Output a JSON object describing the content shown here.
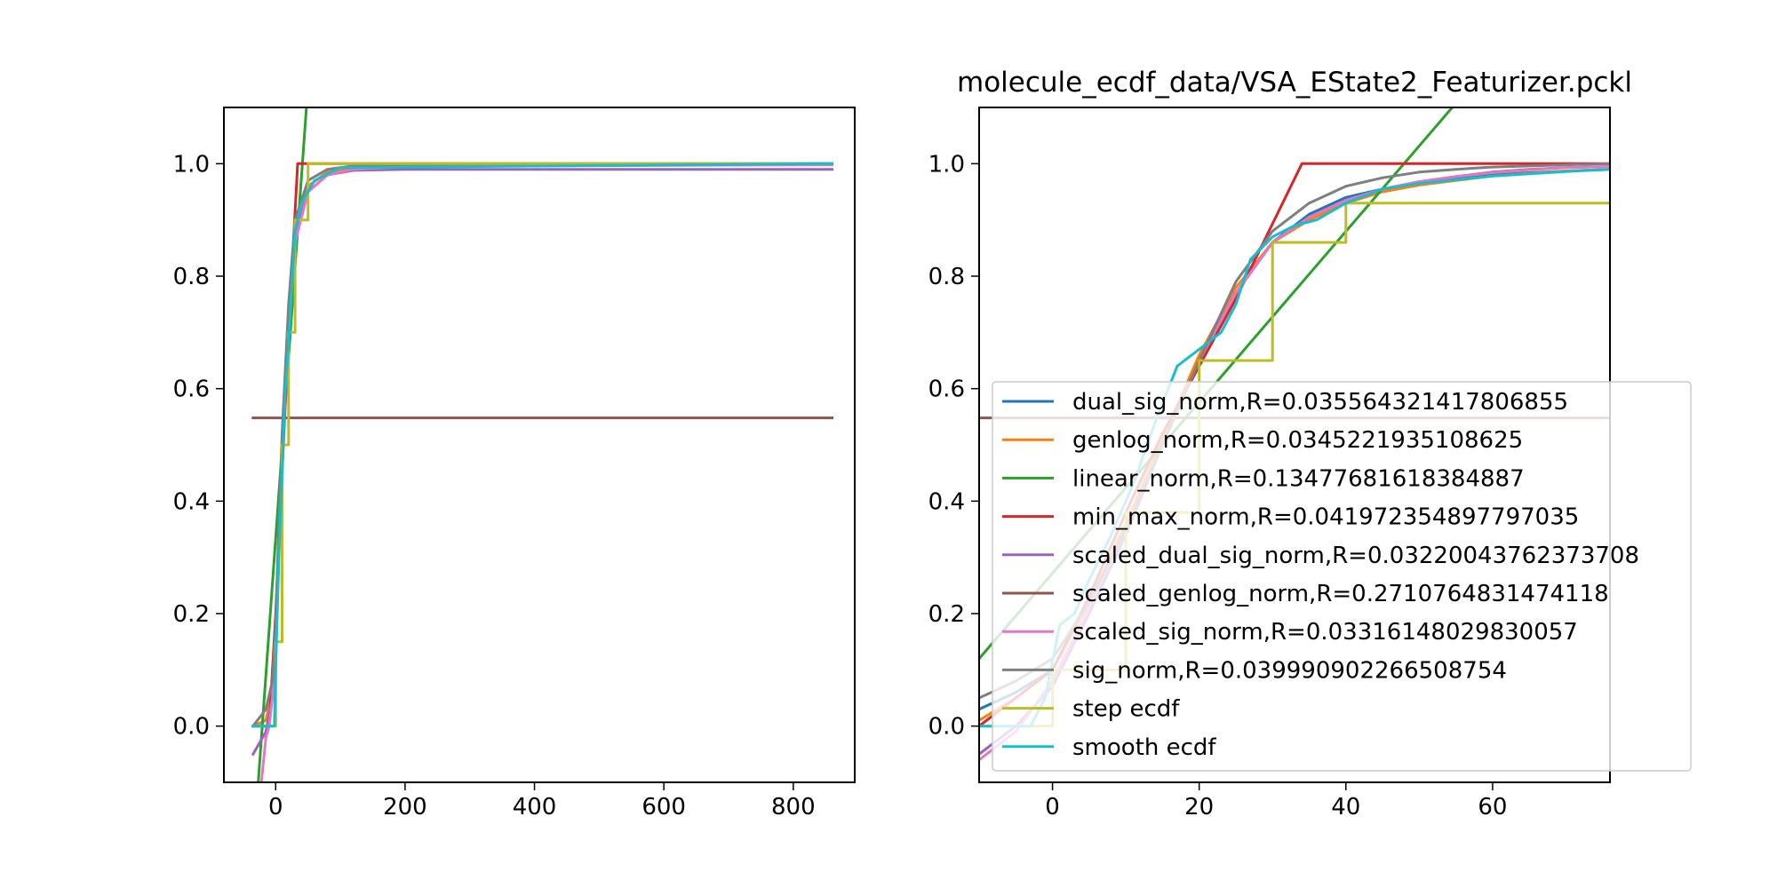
{
  "chart_data": [
    {
      "type": "line",
      "title": "",
      "xlabel": "",
      "ylabel": "",
      "xlim": [
        -80,
        895
      ],
      "ylim": [
        -0.1,
        1.1
      ],
      "xticks": [
        0,
        200,
        400,
        600,
        800
      ],
      "yticks": [
        0.0,
        0.2,
        0.4,
        0.6,
        0.8,
        1.0
      ],
      "xtick_labels": [
        "0",
        "200",
        "400",
        "600",
        "800"
      ],
      "ytick_labels": [
        "0.0",
        "0.2",
        "0.4",
        "0.6",
        "0.8",
        "1.0"
      ],
      "grid": false,
      "series": [
        {
          "key": "dual_sig_norm",
          "color": "#1f77b4",
          "x": [
            -35,
            -15,
            -5,
            0,
            5,
            10,
            20,
            30,
            50,
            80,
            120,
            200,
            860
          ],
          "y": [
            0.0,
            0.01,
            0.06,
            0.17,
            0.35,
            0.5,
            0.72,
            0.88,
            0.96,
            0.985,
            0.993,
            0.997,
            1.0
          ]
        },
        {
          "key": "genlog_norm",
          "color": "#ff7f0e",
          "x": [
            -35,
            -15,
            -5,
            0,
            5,
            10,
            20,
            30,
            50,
            80,
            120,
            200,
            860
          ],
          "y": [
            0.0,
            0.01,
            0.06,
            0.17,
            0.35,
            0.5,
            0.72,
            0.88,
            0.96,
            0.985,
            0.993,
            0.997,
            1.0
          ]
        },
        {
          "key": "linear_norm",
          "color": "#2ca02c",
          "x": [
            -30,
            55
          ],
          "y": [
            -0.15,
            1.22
          ]
        },
        {
          "key": "min_max_norm",
          "color": "#d62728",
          "x": [
            -35,
            -10,
            0,
            10,
            20,
            34,
            860
          ],
          "y": [
            0.0,
            0.0,
            0.2,
            0.45,
            0.7,
            1.0,
            1.0
          ]
        },
        {
          "key": "scaled_dual_sig_norm",
          "color": "#9467bd",
          "x": [
            -35,
            -15,
            -5,
            0,
            5,
            10,
            20,
            30,
            50,
            80,
            120,
            200,
            860
          ],
          "y": [
            -0.05,
            -0.01,
            0.05,
            0.15,
            0.33,
            0.48,
            0.71,
            0.87,
            0.95,
            0.98,
            0.988,
            0.99,
            0.99
          ]
        },
        {
          "key": "scaled_genlog_norm",
          "color": "#8c564b",
          "x": [
            -35,
            860
          ],
          "y": [
            0.548,
            0.548
          ]
        },
        {
          "key": "scaled_sig_norm",
          "color": "#e377c2",
          "x": [
            -22,
            -15,
            -10,
            -5,
            0,
            5,
            10,
            20,
            30,
            50,
            80,
            120,
            200,
            860
          ],
          "y": [
            -0.1,
            -0.02,
            0.0,
            0.05,
            0.16,
            0.34,
            0.5,
            0.71,
            0.86,
            0.95,
            0.98,
            0.99,
            0.995,
            0.998
          ]
        },
        {
          "key": "sig_norm",
          "color": "#7f7f7f",
          "x": [
            -35,
            -15,
            -5,
            0,
            5,
            10,
            20,
            30,
            50,
            80,
            120,
            200,
            860
          ],
          "y": [
            0.0,
            0.03,
            0.08,
            0.18,
            0.36,
            0.52,
            0.75,
            0.9,
            0.97,
            0.99,
            0.996,
            0.998,
            1.0
          ]
        },
        {
          "key": "step_ecdf",
          "color": "#bcbd22",
          "x": [
            -35,
            0,
            0,
            10,
            10,
            20,
            20,
            30,
            30,
            50,
            50,
            860
          ],
          "y": [
            0.0,
            0.0,
            0.15,
            0.15,
            0.5,
            0.5,
            0.7,
            0.7,
            0.9,
            0.9,
            1.0,
            1.0
          ]
        },
        {
          "key": "smooth_ecdf",
          "color": "#17becf",
          "x": [
            -35,
            -2,
            0,
            2,
            5,
            10,
            15,
            20,
            30,
            40,
            60,
            100,
            860
          ],
          "y": [
            0.0,
            0.0,
            0.1,
            0.18,
            0.3,
            0.45,
            0.6,
            0.68,
            0.88,
            0.93,
            0.97,
            0.993,
            1.0
          ]
        }
      ]
    },
    {
      "type": "line",
      "title": "molecule_ecdf_data/VSA_EState2_Featurizer.pckl",
      "xlabel": "",
      "ylabel": "",
      "xlim": [
        -10,
        76
      ],
      "ylim": [
        -0.1,
        1.1
      ],
      "xticks": [
        0,
        20,
        40,
        60
      ],
      "yticks": [
        0.0,
        0.2,
        0.4,
        0.6,
        0.8,
        1.0
      ],
      "xtick_labels": [
        "0",
        "20",
        "40",
        "60"
      ],
      "ytick_labels": [
        "0.0",
        "0.2",
        "0.4",
        "0.6",
        "0.8",
        "1.0"
      ],
      "grid": false,
      "legend_position": "lower-right",
      "series": [
        {
          "key": "dual_sig_norm",
          "name": "dual_sig_norm,R=0.035564321417806855",
          "color": "#1f77b4",
          "x": [
            -10,
            -5,
            0,
            5,
            10,
            15,
            20,
            25,
            30,
            35,
            40,
            45,
            50,
            55,
            60,
            65,
            70,
            76
          ],
          "y": [
            0.03,
            0.06,
            0.1,
            0.22,
            0.35,
            0.5,
            0.65,
            0.77,
            0.86,
            0.91,
            0.94,
            0.955,
            0.965,
            0.973,
            0.98,
            0.984,
            0.987,
            0.99
          ]
        },
        {
          "key": "genlog_norm",
          "name": "genlog_norm,R=0.0345221935108625",
          "color": "#ff7f0e",
          "x": [
            -10,
            -5,
            0,
            5,
            10,
            15,
            20,
            25,
            30,
            35,
            40,
            45,
            50,
            55,
            60,
            65,
            70,
            76
          ],
          "y": [
            0.01,
            0.05,
            0.1,
            0.22,
            0.36,
            0.51,
            0.66,
            0.78,
            0.86,
            0.9,
            0.93,
            0.95,
            0.962,
            0.97,
            0.978,
            0.983,
            0.987,
            0.99
          ]
        },
        {
          "key": "linear_norm",
          "name": "linear_norm,R=0.13477681618384887",
          "color": "#2ca02c",
          "x": [
            -10,
            54.5
          ],
          "y": [
            0.12,
            1.1
          ]
        },
        {
          "key": "min_max_norm",
          "name": "min_max_norm,R=0.041972354897797035",
          "color": "#d62728",
          "x": [
            -10,
            0,
            5,
            10,
            15,
            20,
            25,
            34,
            76
          ],
          "y": [
            0.0,
            0.1,
            0.23,
            0.38,
            0.52,
            0.64,
            0.76,
            1.0,
            1.0
          ]
        },
        {
          "key": "scaled_dual_sig_norm",
          "name": "scaled_dual_sig_norm,R=0.03220043762373708",
          "color": "#9467bd",
          "x": [
            -10,
            -5,
            0,
            5,
            10,
            15,
            20,
            25,
            30,
            35,
            40,
            45,
            50,
            55,
            60,
            65,
            70,
            76
          ],
          "y": [
            -0.05,
            0.0,
            0.07,
            0.2,
            0.34,
            0.5,
            0.65,
            0.77,
            0.86,
            0.905,
            0.935,
            0.955,
            0.968,
            0.977,
            0.985,
            0.99,
            0.993,
            0.995
          ]
        },
        {
          "key": "scaled_genlog_norm",
          "name": "scaled_genlog_norm,R=0.2710764831474118",
          "color": "#8c564b",
          "x": [
            -10,
            76
          ],
          "y": [
            0.548,
            0.548
          ]
        },
        {
          "key": "scaled_sig_norm",
          "name": "scaled_sig_norm,R=0.03316148029830057",
          "color": "#e377c2",
          "x": [
            -10,
            -5,
            0,
            5,
            10,
            15,
            20,
            25,
            30,
            35,
            40,
            45,
            50,
            55,
            60,
            65,
            70,
            76
          ],
          "y": [
            -0.06,
            -0.01,
            0.08,
            0.21,
            0.35,
            0.5,
            0.65,
            0.77,
            0.86,
            0.905,
            0.935,
            0.955,
            0.968,
            0.977,
            0.984,
            0.989,
            0.993,
            0.995
          ]
        },
        {
          "key": "sig_norm",
          "name": "sig_norm,R=0.039990902266508754",
          "color": "#7f7f7f",
          "x": [
            -10,
            -5,
            0,
            5,
            10,
            15,
            20,
            25,
            30,
            35,
            40,
            45,
            50,
            55,
            60,
            65,
            70,
            76
          ],
          "y": [
            0.05,
            0.08,
            0.12,
            0.22,
            0.35,
            0.5,
            0.65,
            0.79,
            0.88,
            0.93,
            0.96,
            0.975,
            0.985,
            0.99,
            0.994,
            0.996,
            0.998,
            1.0
          ]
        },
        {
          "key": "step_ecdf",
          "name": "step ecdf",
          "color": "#bcbd22",
          "x": [
            -10,
            0,
            0,
            10,
            10,
            20,
            20,
            30,
            30,
            40,
            40,
            76
          ],
          "y": [
            0.0,
            0.0,
            0.1,
            0.1,
            0.38,
            0.38,
            0.65,
            0.65,
            0.86,
            0.86,
            0.93,
            0.93
          ]
        },
        {
          "key": "smooth_ecdf",
          "name": "smooth ecdf",
          "color": "#17becf",
          "x": [
            -10,
            -3,
            -1,
            1,
            3,
            5,
            8,
            11,
            14,
            17,
            20,
            23,
            25,
            27,
            30,
            33,
            36,
            40,
            45,
            50,
            60,
            70,
            76
          ],
          "y": [
            0.0,
            0.0,
            0.05,
            0.18,
            0.2,
            0.26,
            0.34,
            0.43,
            0.54,
            0.64,
            0.67,
            0.7,
            0.75,
            0.83,
            0.87,
            0.89,
            0.9,
            0.93,
            0.955,
            0.965,
            0.978,
            0.986,
            0.99
          ]
        }
      ]
    }
  ]
}
